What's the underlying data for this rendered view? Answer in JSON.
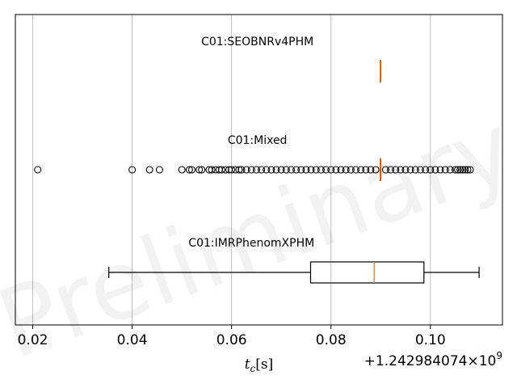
{
  "chart_data": {
    "type": "boxplot",
    "orientation": "horizontal",
    "watermark": "Preliminary",
    "xlabel_var": "t",
    "xlabel_sub": "c",
    "xlabel_unit": "[s]",
    "offset_text": "+1.242984074×10",
    "offset_exp": "9",
    "xlim": [
      0.0165,
      0.1145
    ],
    "xticks": [
      0.02,
      0.04,
      0.06,
      0.08,
      0.1
    ],
    "xtick_labels": [
      "0.02",
      "0.04",
      "0.06",
      "0.08",
      "0.10"
    ],
    "grid": "vertical",
    "series": [
      {
        "name": "C01:SEOBNRv4PHM",
        "whislo": 0.0899,
        "q1": 0.0899,
        "median": 0.0899,
        "q3": 0.0899,
        "whishi": 0.0899,
        "fliers": []
      },
      {
        "name": "C01:Mixed",
        "whislo": 0.0899,
        "q1": 0.0899,
        "median": 0.0899,
        "q3": 0.0899,
        "whishi": 0.0899,
        "fliers": [
          0.021,
          0.04,
          0.0435,
          0.0455,
          0.05,
          0.0515,
          0.052,
          0.0535,
          0.054,
          0.0555,
          0.056,
          0.0568,
          0.0575,
          0.058,
          0.0588,
          0.0595,
          0.06,
          0.0608,
          0.0615,
          0.062,
          0.063,
          0.064,
          0.065,
          0.066,
          0.067,
          0.068,
          0.069,
          0.07,
          0.071,
          0.072,
          0.073,
          0.074,
          0.075,
          0.076,
          0.077,
          0.078,
          0.079,
          0.08,
          0.081,
          0.082,
          0.083,
          0.084,
          0.085,
          0.086,
          0.087,
          0.088,
          0.089,
          0.091,
          0.092,
          0.093,
          0.094,
          0.095,
          0.096,
          0.097,
          0.098,
          0.099,
          0.1,
          0.101,
          0.102,
          0.103,
          0.104,
          0.105,
          0.1055,
          0.106,
          0.1065,
          0.107,
          0.1075,
          0.108
        ]
      },
      {
        "name": "C01:IMRPhenomXPHM",
        "whislo": 0.0353,
        "q1": 0.0759,
        "median": 0.0887,
        "q3": 0.0987,
        "whishi": 0.1098,
        "fliers": []
      }
    ],
    "colors": {
      "box": "#000000",
      "median": "#ff7f0e",
      "grid": "#b0b0b0",
      "flier": "#000000"
    }
  }
}
